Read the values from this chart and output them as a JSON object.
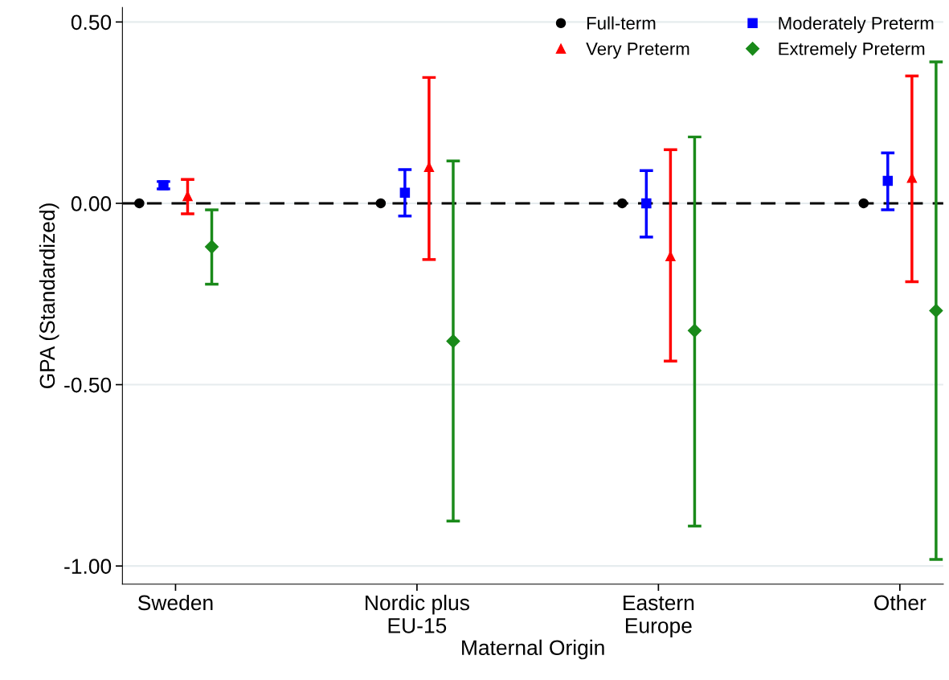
{
  "chart_data": {
    "type": "scatter",
    "xlabel": "Maternal Origin",
    "ylabel": "GPA (Standardized)",
    "categories": [
      "Sweden",
      "Nordic plus\nEU-15",
      "Eastern\nEurope",
      "Other"
    ],
    "series": [
      {
        "name": "Full-term",
        "color": "#000000",
        "marker": "circle",
        "values": [
          0,
          0,
          0,
          0
        ],
        "errors": [
          null,
          null,
          null,
          null
        ]
      },
      {
        "name": "Moderately Preterm",
        "color": "#0000ff",
        "marker": "square",
        "values": [
          0.05,
          0.029,
          0.0,
          0.062
        ],
        "errors": [
          [
            0.04,
            0.06
          ],
          [
            -0.035,
            0.093
          ],
          [
            -0.093,
            0.09
          ],
          [
            -0.018,
            0.139
          ]
        ]
      },
      {
        "name": "Very Preterm",
        "color": "#ff0000",
        "marker": "triangle",
        "values": [
          0.02,
          0.1,
          -0.146,
          0.07
        ],
        "errors": [
          [
            -0.029,
            0.066
          ],
          [
            -0.155,
            0.347
          ],
          [
            -0.435,
            0.148
          ],
          [
            -0.216,
            0.351
          ]
        ]
      },
      {
        "name": "Extremely Preterm",
        "color": "#1a8a1a",
        "marker": "diamond",
        "values": [
          -0.12,
          -0.38,
          -0.351,
          -0.296
        ],
        "errors": [
          [
            -0.223,
            -0.018
          ],
          [
            -0.876,
            0.117
          ],
          [
            -0.89,
            0.183
          ],
          [
            -0.982,
            0.39
          ]
        ]
      }
    ],
    "ylim": [
      -1.05,
      0.54
    ],
    "yticks": [
      {
        "value": 0.5,
        "label": "0.50"
      },
      {
        "value": 0,
        "label": "0.00"
      },
      {
        "value": -0.5,
        "label": "-0.50"
      },
      {
        "value": -1,
        "label": "-1.00"
      }
    ],
    "ref_lines": [
      {
        "axis": "y",
        "value": 0,
        "color": "#000000",
        "line_style": "dashed"
      }
    ],
    "grid": "y",
    "legend": "top right"
  }
}
